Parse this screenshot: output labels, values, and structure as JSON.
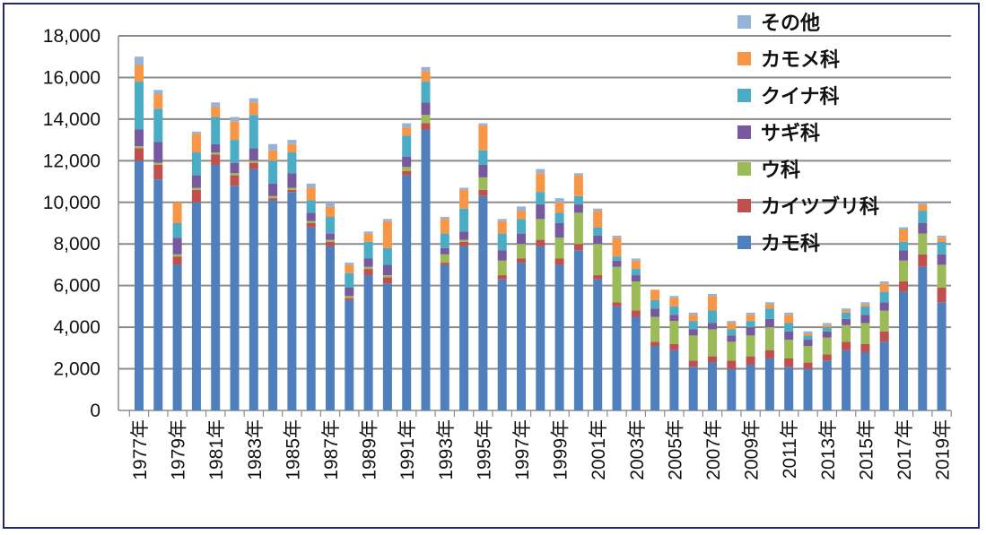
{
  "chart_data": {
    "type": "bar",
    "stacked": true,
    "title": "",
    "xlabel": "",
    "ylabel": "",
    "ylim": [
      0,
      18000
    ],
    "yticks": [
      0,
      2000,
      4000,
      6000,
      8000,
      10000,
      12000,
      14000,
      16000,
      18000
    ],
    "ytick_labels": [
      "0",
      "2,000",
      "4,000",
      "6,000",
      "8,000",
      "10,000",
      "12,000",
      "14,000",
      "16,000",
      "18,000"
    ],
    "grid": true,
    "legend_position": "top-right",
    "categories": [
      "1977年",
      "1978年",
      "1979年",
      "1980年",
      "1981年",
      "1982年",
      "1983年",
      "1984年",
      "1985年",
      "1986年",
      "1987年",
      "1988年",
      "1989年",
      "1990年",
      "1991年",
      "1992年",
      "1993年",
      "1994年",
      "1995年",
      "1996年",
      "1997年",
      "1998年",
      "1999年",
      "2000年",
      "2001年",
      "2002年",
      "2003年",
      "2004年",
      "2005年",
      "2006年",
      "2007年",
      "2008年",
      "2009年",
      "2010年",
      "2011年",
      "2012年",
      "2013年",
      "2014年",
      "2015年",
      "2016年",
      "2017年",
      "2018年",
      "2019年"
    ],
    "x_tick_labels": [
      "1977年",
      "1979年",
      "1981年",
      "1983年",
      "1985年",
      "1987年",
      "1989年",
      "1991年",
      "1993年",
      "1995年",
      "1997年",
      "1999年",
      "2001年",
      "2003年",
      "2005年",
      "2007年",
      "2009年",
      "2011年",
      "2013年",
      "2015年",
      "2017年",
      "2019年"
    ],
    "series": [
      {
        "name": "カモ科",
        "color": "#4f7fbd",
        "values": [
          12000,
          11100,
          7000,
          10000,
          11800,
          10800,
          11600,
          10100,
          10500,
          8800,
          7900,
          5300,
          6500,
          6100,
          11300,
          13500,
          7000,
          7900,
          10300,
          6300,
          7100,
          7900,
          7000,
          7700,
          6300,
          5000,
          4500,
          3100,
          2900,
          2100,
          2300,
          2000,
          2200,
          2500,
          2100,
          2000,
          2400,
          2900,
          2800,
          3300,
          5700,
          6900,
          5200
        ]
      },
      {
        "name": "カイツブリ科",
        "color": "#c0504d",
        "values": [
          600,
          700,
          400,
          600,
          500,
          500,
          300,
          100,
          100,
          200,
          200,
          100,
          300,
          300,
          200,
          300,
          100,
          200,
          300,
          200,
          200,
          300,
          300,
          300,
          200,
          200,
          300,
          200,
          300,
          300,
          300,
          400,
          400,
          400,
          400,
          300,
          300,
          400,
          400,
          500,
          500,
          600,
          700
        ]
      },
      {
        "name": "ウ科",
        "color": "#9bbb59",
        "values": [
          100,
          100,
          100,
          100,
          100,
          100,
          100,
          100,
          100,
          100,
          100,
          100,
          100,
          100,
          200,
          400,
          400,
          100,
          600,
          700,
          700,
          1000,
          1000,
          1500,
          1500,
          1700,
          1400,
          1200,
          1100,
          1200,
          1300,
          900,
          1000,
          1100,
          900,
          800,
          800,
          800,
          1000,
          1000,
          1000,
          1000,
          1100
        ]
      },
      {
        "name": "サギ科",
        "color": "#7759a0",
        "values": [
          800,
          1000,
          800,
          600,
          400,
          500,
          600,
          600,
          700,
          400,
          300,
          400,
          400,
          500,
          500,
          600,
          300,
          400,
          600,
          500,
          500,
          700,
          700,
          400,
          400,
          300,
          300,
          400,
          300,
          300,
          300,
          300,
          400,
          400,
          400,
          300,
          300,
          300,
          400,
          400,
          500,
          500,
          500
        ]
      },
      {
        "name": "クイナ科",
        "color": "#4bacc6",
        "values": [
          2300,
          1600,
          700,
          1100,
          1300,
          1100,
          1600,
          1100,
          1000,
          600,
          800,
          700,
          800,
          800,
          1000,
          1000,
          700,
          1100,
          700,
          800,
          700,
          600,
          500,
          400,
          400,
          200,
          300,
          400,
          400,
          400,
          600,
          300,
          300,
          500,
          400,
          200,
          200,
          300,
          400,
          500,
          400,
          600,
          600
        ]
      },
      {
        "name": "カモメ科",
        "color": "#f79646",
        "values": [
          800,
          700,
          1000,
          900,
          500,
          900,
          600,
          500,
          400,
          600,
          500,
          400,
          400,
          1300,
          400,
          500,
          700,
          900,
          1200,
          600,
          400,
          900,
          500,
          1000,
          800,
          900,
          400,
          500,
          400,
          300,
          700,
          300,
          300,
          200,
          400,
          100,
          100,
          100,
          100,
          400,
          600,
          300,
          200
        ]
      },
      {
        "name": "その他",
        "color": "#95b3d7",
        "values": [
          400,
          200,
          0,
          100,
          200,
          200,
          200,
          300,
          200,
          200,
          200,
          100,
          100,
          100,
          200,
          200,
          100,
          100,
          100,
          100,
          200,
          200,
          200,
          100,
          100,
          100,
          100,
          0,
          100,
          100,
          100,
          100,
          100,
          100,
          100,
          100,
          100,
          100,
          100,
          100,
          100,
          100,
          100
        ]
      }
    ]
  }
}
